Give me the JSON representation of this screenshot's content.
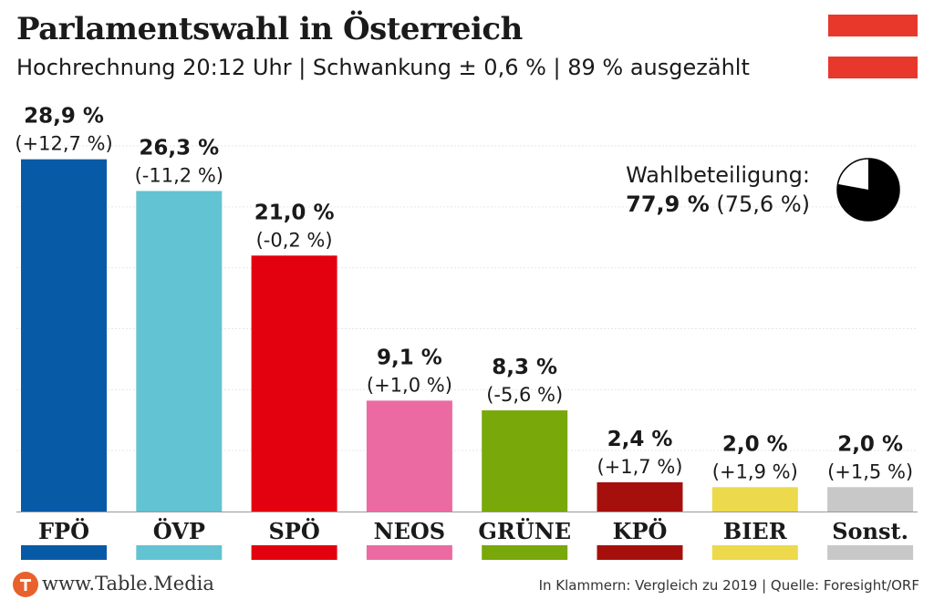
{
  "header": {
    "title": "Parlamentswahl in Österreich",
    "subtitle": "Hochrechnung 20:12 Uhr | Schwankung ± 0,6 % | 89 % ausgezählt"
  },
  "turnout": {
    "label": "Wahlbeteiligung:",
    "value": "77,9 %",
    "previous": "(75,6 %)",
    "fraction": 0.779
  },
  "footer": {
    "brand": "www.Table.Media",
    "note": "In Klammern: Vergleich zu 2019 | Quelle: Foresight/ORF"
  },
  "colors": {
    "flag_red": "#e8382c",
    "grid": "#e6e6e6"
  },
  "chart_data": {
    "type": "bar",
    "title": "Parlamentswahl in Österreich",
    "subtitle": "Hochrechnung 20:12 Uhr | Schwankung ± 0,6 % | 89 % ausgezählt",
    "xlabel": "",
    "ylabel": "",
    "ylim": [
      0,
      30
    ],
    "grid": true,
    "categories": [
      "FPÖ",
      "ÖVP",
      "SPÖ",
      "NEOS",
      "GRÜNE",
      "KPÖ",
      "BIER",
      "Sonst."
    ],
    "values": [
      28.9,
      26.3,
      21.0,
      9.1,
      8.3,
      2.4,
      2.0,
      2.0
    ],
    "value_labels": [
      "28,9 %",
      "26,3 %",
      "21,0 %",
      "9,1 %",
      "8,3 %",
      "2,4 %",
      "2,0 %",
      "2,0 %"
    ],
    "change_labels": [
      "(+12,7 %)",
      "(-11,2 %)",
      "(-0,2 %)",
      "(+1,0 %)",
      "(-5,6 %)",
      "(+1,7 %)",
      "(+1,9 %)",
      "(+1,5 %)"
    ],
    "colors": [
      "#075aa6",
      "#62c3d3",
      "#e3000f",
      "#eb6aa2",
      "#78a809",
      "#a50f0c",
      "#ecd94c",
      "#c8c8c8"
    ]
  }
}
